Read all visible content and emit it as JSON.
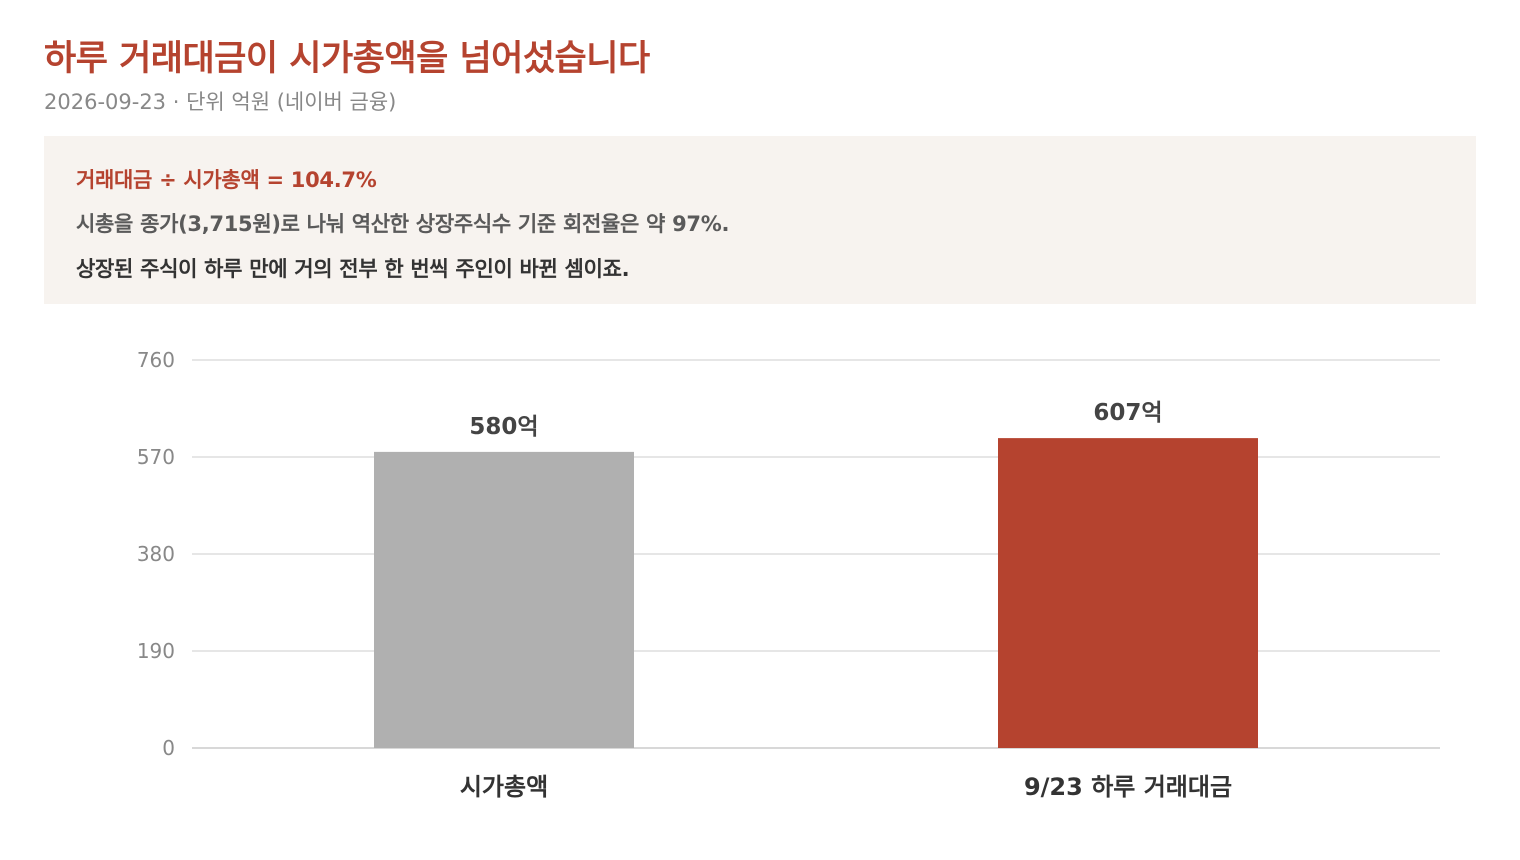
{
  "header": {
    "title": "하루 거래대금이 시가총액을 넘어섰습니다",
    "subtitle": "2026-09-23 · 단위 억원 (네이버 금융)"
  },
  "callout": {
    "line1": "거래대금 ÷ 시가총액 = 104.7%",
    "line2": "시총을 종가(3,715원)로 나눠 역산한 상장주식수 기준 회전율은 약 97%.",
    "line3": "상장된 주식이 하루 만에 거의 전부 한 번씩 주인이 바뀐 셈이죠."
  },
  "colors": {
    "accent": "#b5432f",
    "neutral_bar": "#b0b0b0",
    "callout_bg": "#f7f3ef",
    "grid": "#dddddd"
  },
  "chart_data": {
    "type": "bar",
    "categories": [
      "시가총액",
      "9/23 하루 거래대금"
    ],
    "values": [
      580,
      607
    ],
    "data_labels": [
      "580억",
      "607억"
    ],
    "bar_colors": [
      "#b0b0b0",
      "#b5432f"
    ],
    "yticks": [
      0,
      190,
      380,
      570,
      760
    ],
    "ylim": [
      0,
      760
    ],
    "grid": true,
    "xlabel": "",
    "ylabel": ""
  }
}
